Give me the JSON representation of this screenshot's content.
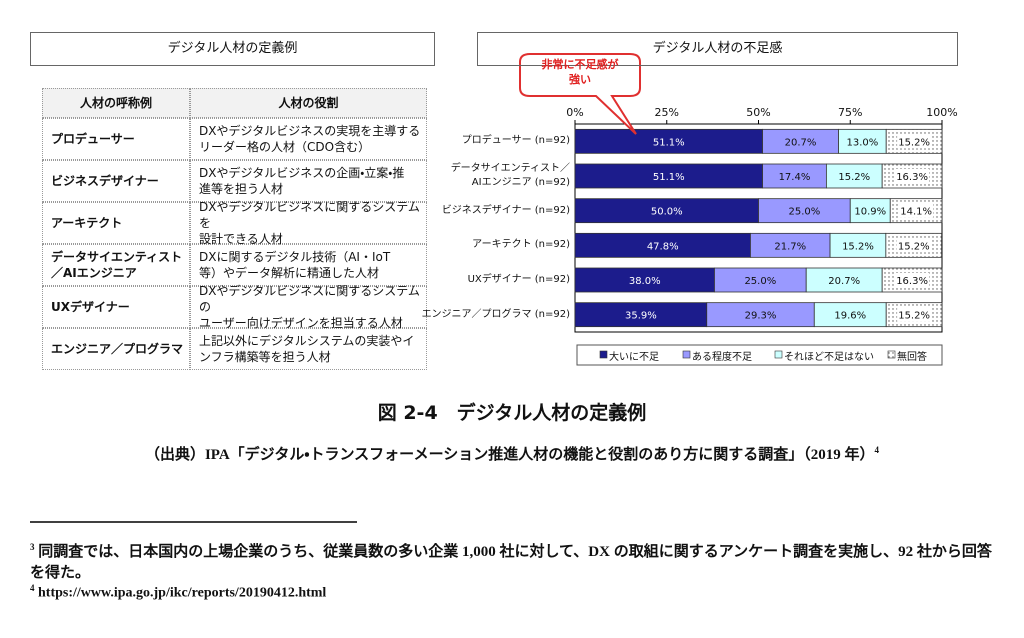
{
  "chart_data": {
    "type": "stacked-bar-horizontal",
    "title": "デジタル人材の不足感",
    "annotation": "非常に不足感が\n強い",
    "categories": [
      "プロデューサー (n=92)",
      "データサイエンティスト／\nAIエンジニア (n=92)",
      "ビジネスデザイナー (n=92)",
      "アーキテクト (n=92)",
      "UXデザイナー (n=92)",
      "エンジニア／プログラマ (n=92)"
    ],
    "series": [
      {
        "name": "大いに不足",
        "color": "#1c1c8c",
        "values": [
          51.1,
          51.1,
          50,
          47.8,
          38,
          35.9
        ],
        "value_labels": [
          "51.1%",
          "51.1%",
          "50.0%",
          "47.8%",
          "38.0%",
          "35.9%"
        ]
      },
      {
        "name": "ある程度不足",
        "color": "#9999ff",
        "values": [
          20.7,
          17.4,
          25,
          21.7,
          25,
          29.3
        ],
        "value_labels": [
          "20.7%",
          "17.4%",
          "25.0%",
          "21.7%",
          "25.0%",
          "29.3%"
        ]
      },
      {
        "name": "それほど不足はない",
        "color": "#ccffff",
        "values": [
          13,
          15.2,
          10.9,
          15.2,
          20.7,
          19.6
        ],
        "value_labels": [
          "13.0%",
          "15.2%",
          "10.9%",
          "15.2%",
          "20.7%",
          "19.6%"
        ]
      },
      {
        "name": "無回答",
        "color": "#ffffff",
        "values": [
          15.2,
          16.3,
          14.1,
          15.2,
          16.3,
          15.2
        ],
        "value_labels": [
          "15.2%",
          "16.3%",
          "14.1%",
          "15.2%",
          "16.3%",
          "15.2%"
        ]
      }
    ],
    "xlim": [
      0,
      100
    ],
    "xticks": [
      {
        "value": 0,
        "label": "0%"
      },
      {
        "value": 25,
        "label": "25%"
      },
      {
        "value": 50,
        "label": "50%"
      },
      {
        "value": 75,
        "label": "75%"
      },
      {
        "value": 100,
        "label": "100%"
      }
    ],
    "legend": "bottom"
  },
  "table": {
    "title": "デジタル人材の定義例",
    "header": [
      "人材の呼称例",
      "人材の役割"
    ],
    "rows": [
      [
        "プロデューサー",
        "DXやデジタルビジネスの実現を主導する\nリーダー格の人材（CDO含む）"
      ],
      [
        "ビジネスデザイナー",
        "DXやデジタルビジネスの企画・立案・推\n進等を担う人材"
      ],
      [
        "アーキテクト",
        "DXやデジタルビジネスに関するシステムを\n設計できる人材"
      ],
      [
        "データサイエンティスト\n／AIエンジニア",
        "DXに関するデジタル技術（AI・IoT\n等）やデータ解析に精通した人材"
      ],
      [
        "UXデザイナー",
        "DXやデジタルビジネスに関するシステムの\nユーザー向けデザインを担当する人材"
      ],
      [
        "エンジニア／プログラマ",
        "上記以外にデジタルシステムの実装やイ\nンフラ構築等を担う人材"
      ]
    ]
  },
  "caption": "図 2-4　デジタル人材の定義例",
  "source": {
    "text": "（出典）IPA「デジタル・トランスフォーメーション推進人材の機能と役割のあり方に関する調査」（2019 年）",
    "note_ref": "4"
  },
  "footnotes": [
    {
      "mark": "3",
      "text": "同調査では、日本国内の上場企業のうち、従業員数の多い企業 1,000 社に対して、DX の取組に関するアンケート調査を実施し、92 社から回答を得た。"
    },
    {
      "mark": "4",
      "text": "https://www.ipa.go.jp/ikc/reports/20190412.html"
    }
  ]
}
